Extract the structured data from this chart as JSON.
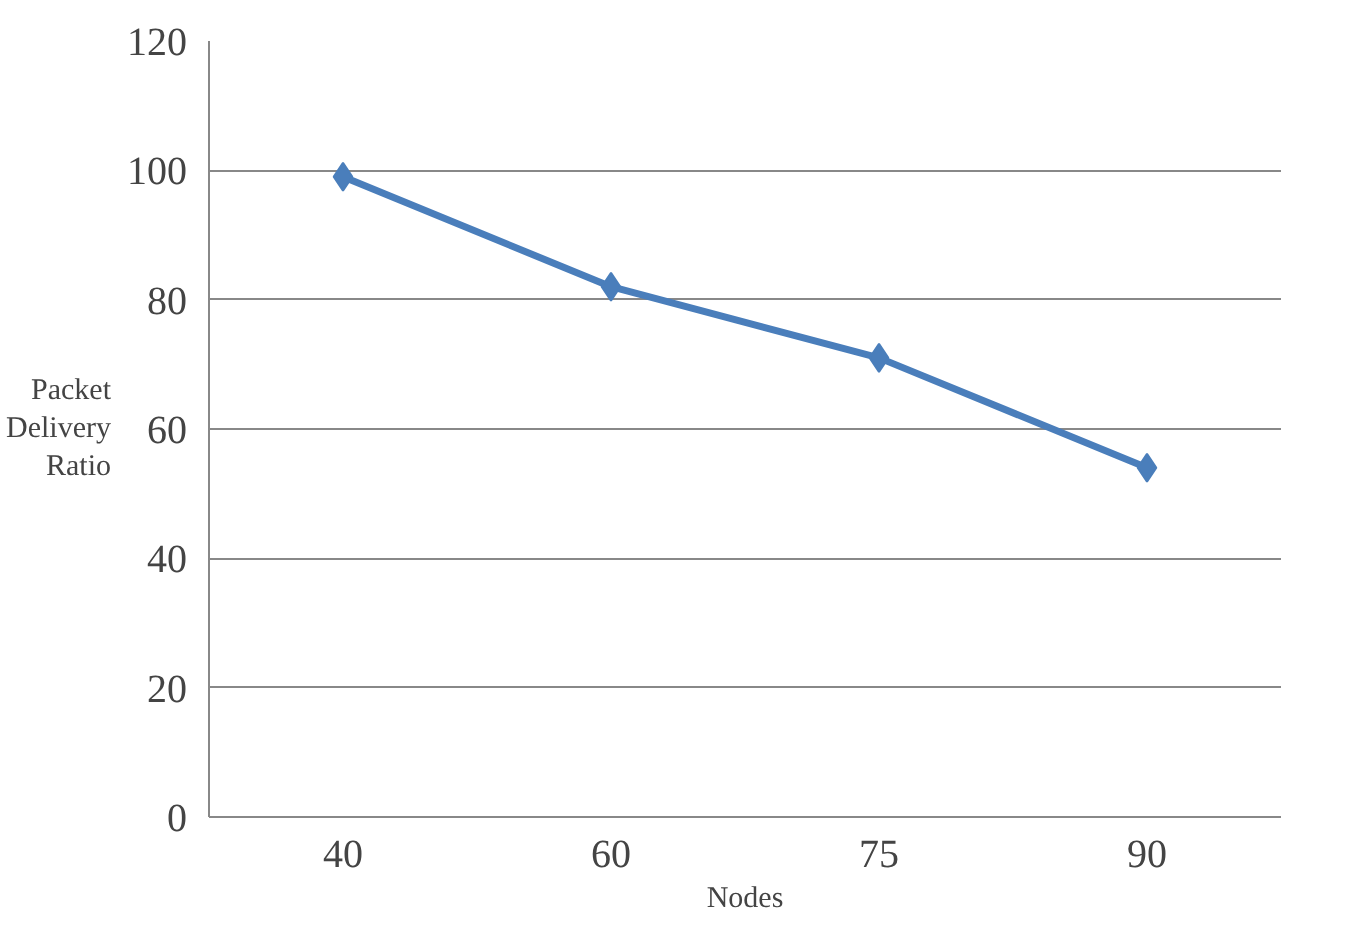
{
  "chart_data": {
    "type": "line",
    "xlabel": "Nodes",
    "ylabel": "Packet Delivery Ratio",
    "categories": [
      "40",
      "60",
      "75",
      "90"
    ],
    "series": [
      {
        "color": "#4a7ebb",
        "values": [
          99,
          82,
          71,
          54
        ]
      }
    ],
    "ylim": [
      0,
      120
    ],
    "yticks": [
      0,
      20,
      40,
      60,
      80,
      100,
      120
    ],
    "grid": "y",
    "marker": "diamond",
    "line_style": "solid"
  }
}
